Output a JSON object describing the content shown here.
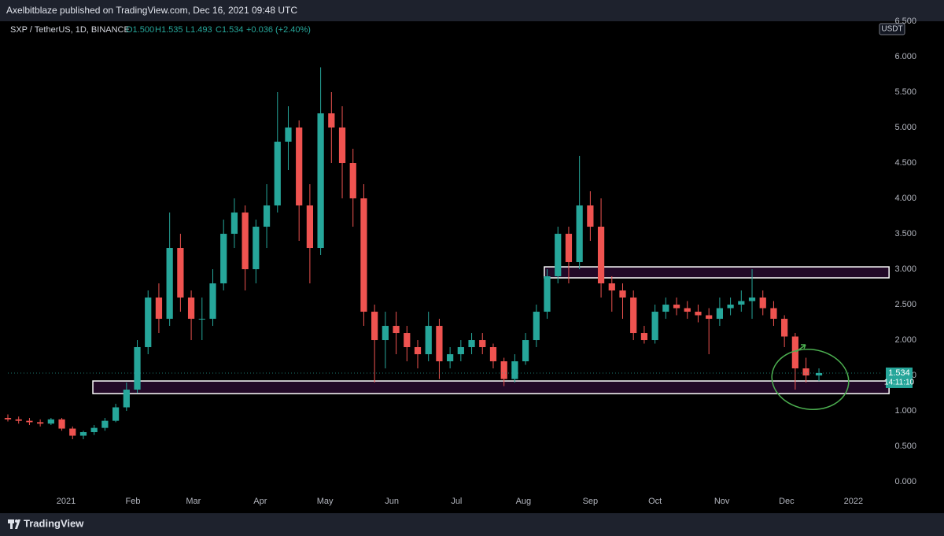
{
  "publisher": "Axelbitblaze published on TradingView.com, Dec 16, 2021 09:48 UTC",
  "footer": "TradingView",
  "chart_data": {
    "type": "candlestick",
    "title": "SXP / TetherUS, 1D, BINANCE",
    "quote": [
      "O1.500",
      "H1.535",
      "L1.493",
      "C1.534",
      "+0.036 (+2.40%)"
    ],
    "currency": "USDT",
    "last_price": {
      "value": 1.534,
      "label": "1.534"
    },
    "countdown": "14:11:10",
    "up_color": "#26a69a",
    "down_color": "#ef5350",
    "x": [
      -27,
      -22,
      -17,
      -12,
      -7,
      -2,
      3,
      8,
      13,
      18,
      23,
      28,
      33,
      38,
      43,
      48,
      53,
      58,
      63,
      68,
      73,
      78,
      83,
      88,
      93,
      98,
      103,
      108,
      113,
      118,
      123,
      128,
      133,
      138,
      143,
      148,
      153,
      158,
      163,
      168,
      173,
      178,
      183,
      188,
      193,
      198,
      203,
      208,
      213,
      218,
      223,
      228,
      233,
      238,
      243,
      248,
      253,
      258,
      263,
      268,
      273,
      278,
      283,
      288,
      293,
      298,
      303,
      308,
      313,
      318,
      323,
      328,
      333,
      338,
      343,
      349
    ],
    "open": [
      0.9,
      0.88,
      0.86,
      0.84,
      0.82,
      0.88,
      0.75,
      0.65,
      0.7,
      0.76,
      0.86,
      1.05,
      1.3,
      1.9,
      2.6,
      2.3,
      3.3,
      2.6,
      2.3,
      2.3,
      2.8,
      3.5,
      3.8,
      3.0,
      3.6,
      3.9,
      4.8,
      5.0,
      3.9,
      3.3,
      5.2,
      5.0,
      4.5,
      4.0,
      2.4,
      2.0,
      2.2,
      2.1,
      1.9,
      1.8,
      2.2,
      1.7,
      1.8,
      1.9,
      2.0,
      1.9,
      1.7,
      1.45,
      1.7,
      2.0,
      2.4,
      2.9,
      3.5,
      3.1,
      3.9,
      3.6,
      2.8,
      2.7,
      2.6,
      2.1,
      2.0,
      2.4,
      2.5,
      2.45,
      2.4,
      2.35,
      2.3,
      2.45,
      2.5,
      2.55,
      2.6,
      2.45,
      2.3,
      2.05,
      1.6,
      1.5
    ],
    "high": [
      0.95,
      0.92,
      0.9,
      0.88,
      0.9,
      0.9,
      0.78,
      0.72,
      0.8,
      0.9,
      1.1,
      1.4,
      2.0,
      2.7,
      2.8,
      3.8,
      3.5,
      2.7,
      2.6,
      3.0,
      3.7,
      4.0,
      3.9,
      3.7,
      4.2,
      5.5,
      5.3,
      5.1,
      4.2,
      5.85,
      5.5,
      5.3,
      4.7,
      4.2,
      2.5,
      2.4,
      2.4,
      2.2,
      2.0,
      2.4,
      2.3,
      1.9,
      2.0,
      2.1,
      2.1,
      1.95,
      1.75,
      1.8,
      2.1,
      2.5,
      3.0,
      3.6,
      3.6,
      4.6,
      4.1,
      4.0,
      2.9,
      2.8,
      2.7,
      2.2,
      2.5,
      2.6,
      2.6,
      2.55,
      2.5,
      2.45,
      2.6,
      2.6,
      2.7,
      3.0,
      2.7,
      2.55,
      2.35,
      2.1,
      1.75,
      1.6
    ],
    "low": [
      0.85,
      0.82,
      0.8,
      0.78,
      0.8,
      0.72,
      0.6,
      0.6,
      0.66,
      0.72,
      0.84,
      1.0,
      1.25,
      1.8,
      2.1,
      2.2,
      2.4,
      2.0,
      2.0,
      2.2,
      2.7,
      3.3,
      2.7,
      2.8,
      3.3,
      3.8,
      4.4,
      3.4,
      2.8,
      3.2,
      4.5,
      4.0,
      3.6,
      2.2,
      1.4,
      1.6,
      1.8,
      1.7,
      1.6,
      1.7,
      1.45,
      1.6,
      1.7,
      1.8,
      1.8,
      1.6,
      1.35,
      1.4,
      1.65,
      1.9,
      2.3,
      2.8,
      2.8,
      3.0,
      3.4,
      2.6,
      2.4,
      2.3,
      2.0,
      1.95,
      1.95,
      2.3,
      2.35,
      2.3,
      2.25,
      1.8,
      2.2,
      2.35,
      2.4,
      2.3,
      2.35,
      2.2,
      1.9,
      1.3,
      1.4,
      1.42
    ],
    "close": [
      0.88,
      0.86,
      0.84,
      0.82,
      0.88,
      0.75,
      0.65,
      0.7,
      0.76,
      0.86,
      1.05,
      1.3,
      1.9,
      2.6,
      2.3,
      3.3,
      2.6,
      2.3,
      2.3,
      2.8,
      3.5,
      3.8,
      3.0,
      3.6,
      3.9,
      4.8,
      5.0,
      3.9,
      3.3,
      5.2,
      5.0,
      4.5,
      4.0,
      2.4,
      2.0,
      2.2,
      2.1,
      1.9,
      1.8,
      2.2,
      1.7,
      1.8,
      1.9,
      2.0,
      1.9,
      1.7,
      1.45,
      1.7,
      2.0,
      2.4,
      2.9,
      3.5,
      3.1,
      3.9,
      3.6,
      2.8,
      2.7,
      2.6,
      2.1,
      2.0,
      2.4,
      2.5,
      2.45,
      2.4,
      2.35,
      2.3,
      2.45,
      2.5,
      2.55,
      2.6,
      2.45,
      2.3,
      2.05,
      1.6,
      1.5,
      1.534
    ],
    "xlim": [
      -27,
      377.8
    ],
    "xticks": [
      {
        "value": 0,
        "label": "2021"
      },
      {
        "value": 31,
        "label": "Feb"
      },
      {
        "value": 59,
        "label": "Mar"
      },
      {
        "value": 90,
        "label": "Apr"
      },
      {
        "value": 120,
        "label": "May"
      },
      {
        "value": 151,
        "label": "Jun"
      },
      {
        "value": 181,
        "label": "Jul"
      },
      {
        "value": 212,
        "label": "Aug"
      },
      {
        "value": 243,
        "label": "Sep"
      },
      {
        "value": 273,
        "label": "Oct"
      },
      {
        "value": 304,
        "label": "Nov"
      },
      {
        "value": 334,
        "label": "Dec"
      },
      {
        "value": 365,
        "label": "2022"
      }
    ],
    "ylim": [
      -0.144,
      6.5
    ],
    "yticks": [
      {
        "value": 0,
        "label": "0.000"
      },
      {
        "value": 0.5,
        "label": "0.500"
      },
      {
        "value": 1,
        "label": "1.000"
      },
      {
        "value": 1.5,
        "label": "1.500"
      },
      {
        "value": 2,
        "label": "2.000"
      },
      {
        "value": 2.5,
        "label": "2.500"
      },
      {
        "value": 3,
        "label": "3.000"
      },
      {
        "value": 3.5,
        "label": "3.500"
      },
      {
        "value": 4,
        "label": "4.000"
      },
      {
        "value": 4.5,
        "label": "4.500"
      },
      {
        "value": 5,
        "label": "5.000"
      },
      {
        "value": 5.5,
        "label": "5.500"
      },
      {
        "value": 6,
        "label": "6.000"
      },
      {
        "value": 6.5,
        "label": "6.500"
      }
    ],
    "zones": [
      {
        "x0": 12.4,
        "x1": 381.5,
        "top": 1.422,
        "bottom": 1.244
      },
      {
        "x0": 221.7,
        "x1": 381.5,
        "top": 3.033,
        "bottom": 2.878
      }
    ]
  }
}
